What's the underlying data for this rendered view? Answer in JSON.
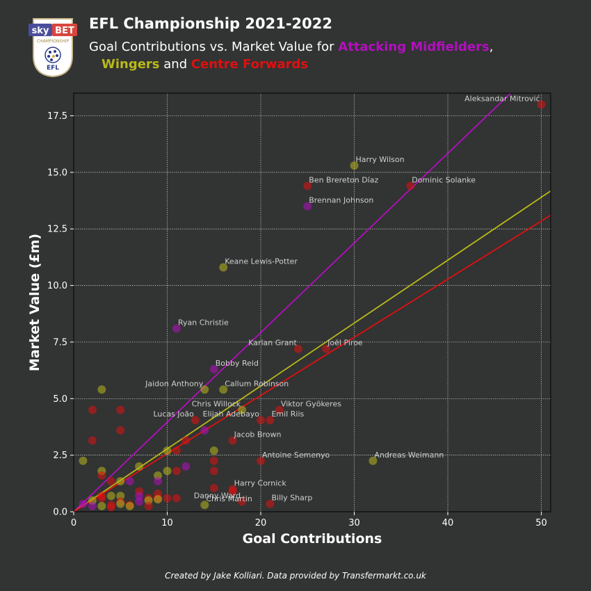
{
  "header": {
    "title": "EFL Championship 2021-2022",
    "subtitle_prefix": "Goal Contributions vs. Market Value for ",
    "subtitle_am": "Attacking Midfielders",
    "subtitle_comma": ",",
    "subtitle_w": "Wingers",
    "subtitle_and": " and ",
    "subtitle_cf": "Centre Forwards"
  },
  "logo": {
    "sponsor_left": "sky",
    "sponsor_right": "BET",
    "league": "CHAMPIONSHIP",
    "org": "EFL"
  },
  "footer": {
    "credit": "Created by Jake Kolliari. Data provided by Transfermarkt.co.uk"
  },
  "colors": {
    "background": "#323333",
    "attacking_midfielders": "#b30fbf",
    "wingers": "#b8b81a",
    "centre_forwards": "#e01010",
    "grid": "#cfcfcf"
  },
  "chart_data": {
    "type": "scatter",
    "xlabel": "Goal Contributions",
    "ylabel": "Market Value (£m)",
    "xlim": [
      0,
      51
    ],
    "ylim": [
      0,
      18.5
    ],
    "xticks": [
      "0",
      "10",
      "20",
      "30",
      "40",
      "50"
    ],
    "yticks": [
      "0.0",
      "2.5",
      "5.0",
      "7.5",
      "10.0",
      "12.5",
      "15.0",
      "17.5"
    ],
    "grid": true,
    "trend_lines": [
      {
        "group": "am",
        "slope": 0.396
      },
      {
        "group": "w",
        "slope": 0.278
      },
      {
        "group": "cf",
        "slope": 0.257
      }
    ],
    "points": [
      {
        "x": 50,
        "y": 18.0,
        "group": "cf",
        "label": "Aleksandar Mitrović",
        "anchor": "end"
      },
      {
        "x": 30,
        "y": 15.3,
        "group": "w",
        "label": "Harry Wilson",
        "anchor": "start"
      },
      {
        "x": 25,
        "y": 14.4,
        "group": "cf",
        "label": "Ben Brereton Díaz",
        "anchor": "start"
      },
      {
        "x": 36,
        "y": 14.4,
        "group": "cf",
        "label": "Dominic Solanke",
        "anchor": "start"
      },
      {
        "x": 25,
        "y": 13.5,
        "group": "am",
        "label": "Brennan Johnson",
        "anchor": "start"
      },
      {
        "x": 16,
        "y": 10.8,
        "group": "w",
        "label": "Keane Lewis-Potter",
        "anchor": "start"
      },
      {
        "x": 11,
        "y": 8.1,
        "group": "am",
        "label": "Ryan Christie",
        "anchor": "start"
      },
      {
        "x": 24,
        "y": 7.2,
        "group": "cf",
        "label": "Karlan Grant",
        "anchor": "end"
      },
      {
        "x": 27,
        "y": 7.2,
        "group": "cf",
        "label": "Joël Piroe",
        "anchor": "start"
      },
      {
        "x": 15,
        "y": 6.3,
        "group": "am",
        "label": "Bobby Reid",
        "anchor": "start"
      },
      {
        "x": 14,
        "y": 5.4,
        "group": "w",
        "label": "Jaidon Anthony",
        "anchor": "end"
      },
      {
        "x": 16,
        "y": 5.4,
        "group": "w",
        "label": "Callum Robinson",
        "anchor": "start"
      },
      {
        "x": 18,
        "y": 4.5,
        "group": "w",
        "label": "Chris Willock",
        "anchor": "end"
      },
      {
        "x": 22,
        "y": 4.5,
        "group": "cf",
        "label": "Viktor Gyökeres",
        "anchor": "start"
      },
      {
        "x": 13,
        "y": 4.05,
        "group": "cf",
        "label": "Lucas João",
        "anchor": "end"
      },
      {
        "x": 20,
        "y": 4.05,
        "group": "cf",
        "label": "Elijah Adebayo",
        "anchor": "end"
      },
      {
        "x": 21,
        "y": 4.05,
        "group": "cf",
        "label": "Emil Riis",
        "anchor": "start"
      },
      {
        "x": 17,
        "y": 3.15,
        "group": "cf",
        "label": "Jacob Brown",
        "anchor": "start"
      },
      {
        "x": 20,
        "y": 2.25,
        "group": "cf",
        "label": "Antoine Semenyo",
        "anchor": "start"
      },
      {
        "x": 32,
        "y": 2.25,
        "group": "w",
        "label": "Andreas Weimann",
        "anchor": "start"
      },
      {
        "x": 17,
        "y": 1.0,
        "group": "cf",
        "label": "Harry Cornick",
        "anchor": "start"
      },
      {
        "x": 18,
        "y": 0.45,
        "group": "cf",
        "label": "Danny Ward",
        "anchor": "end"
      },
      {
        "x": 21,
        "y": 0.35,
        "group": "cf",
        "label": "Billy Sharp",
        "anchor": "start"
      },
      {
        "x": 14,
        "y": 0.3,
        "group": "w",
        "label": "Chris Martin",
        "anchor": "start"
      },
      {
        "x": 1,
        "y": 2.25,
        "group": "w"
      },
      {
        "x": 1,
        "y": 0.35,
        "group": "am"
      },
      {
        "x": 2,
        "y": 4.5,
        "group": "cf"
      },
      {
        "x": 2,
        "y": 3.15,
        "group": "cf"
      },
      {
        "x": 2,
        "y": 0.5,
        "group": "w"
      },
      {
        "x": 2,
        "y": 0.25,
        "group": "am"
      },
      {
        "x": 3,
        "y": 5.4,
        "group": "w"
      },
      {
        "x": 3,
        "y": 1.8,
        "group": "w"
      },
      {
        "x": 3,
        "y": 1.6,
        "group": "cf"
      },
      {
        "x": 3,
        "y": 0.7,
        "group": "cf"
      },
      {
        "x": 3,
        "y": 0.6,
        "group": "cf"
      },
      {
        "x": 3,
        "y": 0.25,
        "group": "w"
      },
      {
        "x": 4,
        "y": 1.35,
        "group": "cf"
      },
      {
        "x": 4,
        "y": 0.7,
        "group": "w"
      },
      {
        "x": 4,
        "y": 0.3,
        "group": "cf"
      },
      {
        "x": 4,
        "y": 0.2,
        "group": "cf"
      },
      {
        "x": 5,
        "y": 4.5,
        "group": "cf"
      },
      {
        "x": 5,
        "y": 3.6,
        "group": "cf"
      },
      {
        "x": 5,
        "y": 1.35,
        "group": "w"
      },
      {
        "x": 5,
        "y": 0.7,
        "group": "w"
      },
      {
        "x": 5,
        "y": 0.45,
        "group": "cf"
      },
      {
        "x": 5,
        "y": 0.35,
        "group": "w"
      },
      {
        "x": 6,
        "y": 1.35,
        "group": "am"
      },
      {
        "x": 6,
        "y": 0.3,
        "group": "cf"
      },
      {
        "x": 6,
        "y": 0.25,
        "group": "w"
      },
      {
        "x": 7,
        "y": 2.0,
        "group": "w"
      },
      {
        "x": 7,
        "y": 0.9,
        "group": "cf"
      },
      {
        "x": 7,
        "y": 0.7,
        "group": "am"
      },
      {
        "x": 7,
        "y": 0.45,
        "group": "am"
      },
      {
        "x": 8,
        "y": 0.6,
        "group": "cf"
      },
      {
        "x": 8,
        "y": 0.5,
        "group": "w"
      },
      {
        "x": 8,
        "y": 0.25,
        "group": "cf"
      },
      {
        "x": 9,
        "y": 1.6,
        "group": "w"
      },
      {
        "x": 9,
        "y": 1.35,
        "group": "am"
      },
      {
        "x": 9,
        "y": 0.8,
        "group": "cf"
      },
      {
        "x": 9,
        "y": 0.6,
        "group": "cf"
      },
      {
        "x": 9,
        "y": 0.55,
        "group": "w"
      },
      {
        "x": 10,
        "y": 2.7,
        "group": "w"
      },
      {
        "x": 10,
        "y": 1.8,
        "group": "w"
      },
      {
        "x": 10,
        "y": 0.6,
        "group": "cf"
      },
      {
        "x": 11,
        "y": 2.7,
        "group": "cf"
      },
      {
        "x": 11,
        "y": 1.8,
        "group": "cf"
      },
      {
        "x": 11,
        "y": 0.6,
        "group": "cf"
      },
      {
        "x": 12,
        "y": 3.15,
        "group": "cf"
      },
      {
        "x": 12,
        "y": 2.0,
        "group": "am"
      },
      {
        "x": 14,
        "y": 3.6,
        "group": "am"
      },
      {
        "x": 15,
        "y": 2.7,
        "group": "w"
      },
      {
        "x": 15,
        "y": 2.25,
        "group": "cf"
      },
      {
        "x": 15,
        "y": 1.8,
        "group": "cf"
      },
      {
        "x": 15,
        "y": 1.05,
        "group": "cf"
      },
      {
        "x": 17,
        "y": 0.9,
        "group": "cf"
      }
    ]
  }
}
